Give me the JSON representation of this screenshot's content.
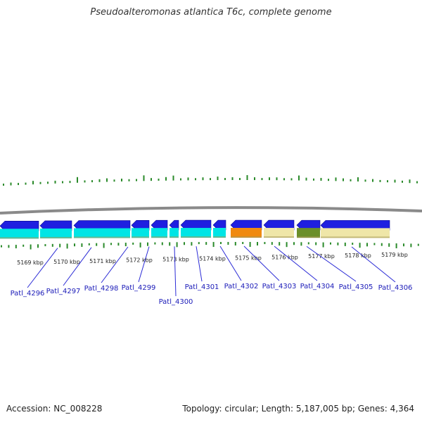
{
  "title": "Pseudoalteromonas atlantica T6c, complete genome",
  "footer": {
    "accession": "Accession: NC_008228",
    "summary": "Topology: circular; Length: 5,187,005 bp; Genes: 4,364"
  },
  "colors": {
    "forward_cds": "#1f1fe0",
    "reverse_cds": "#00e5e5",
    "skew_ticks": "#2a8a2a",
    "backbone": "#8a8a8a",
    "label": "#1a1ab8",
    "leader": "#2b2bd6",
    "orange_feature": "#f08a10",
    "tan_feature": "#efe6a8",
    "olive_feature": "#6b8f2a"
  },
  "ruler": {
    "unit": "kbp",
    "ticks": [
      "5169 kbp",
      "5170 kbp",
      "5171 kbp",
      "5172 kbp",
      "5173 kbp",
      "5174 kbp",
      "5175 kbp",
      "5176 kbp",
      "5177 kbp",
      "5178 kbp",
      "5179 kbp"
    ]
  },
  "genes": [
    {
      "label": "Patl_4296"
    },
    {
      "label": "Patl_4297"
    },
    {
      "label": "Patl_4298"
    },
    {
      "label": "Patl_4299"
    },
    {
      "label": "Patl_4300"
    },
    {
      "label": "Patl_4301"
    },
    {
      "label": "Patl_4302"
    },
    {
      "label": "Patl_4303"
    },
    {
      "label": "Patl_4304"
    },
    {
      "label": "Patl_4305"
    },
    {
      "label": "Patl_4306"
    }
  ]
}
